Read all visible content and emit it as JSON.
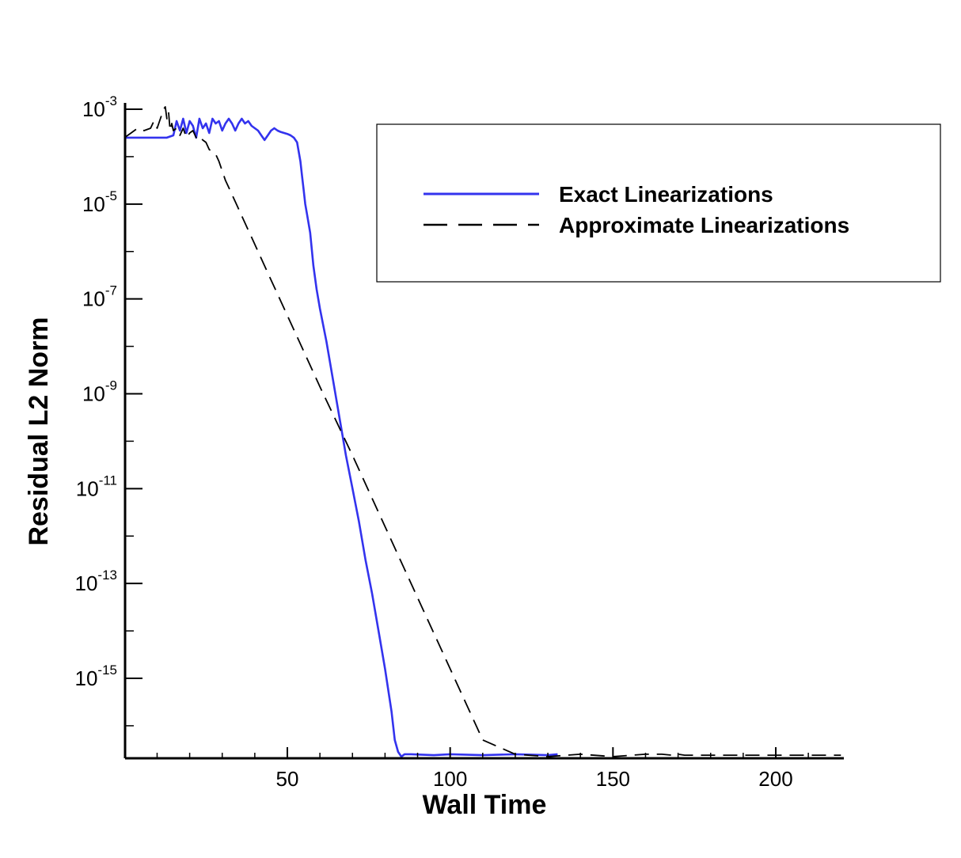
{
  "chart_data": {
    "type": "line",
    "xlabel": "Wall Time",
    "ylabel": "Residual L2 Norm",
    "xlim": [
      0,
      220
    ],
    "ylim_log10": [
      -16.7,
      -2.95
    ],
    "yscale": "log",
    "grid": false,
    "legend_placement": "top-right",
    "x_ticks": [
      {
        "value": 50,
        "label": "50"
      },
      {
        "value": 100,
        "label": "100"
      },
      {
        "value": 150,
        "label": "150"
      },
      {
        "value": 200,
        "label": "200"
      }
    ],
    "y_ticks": [
      {
        "value": -3,
        "base": "10",
        "exp": "-3"
      },
      {
        "value": -5,
        "base": "10",
        "exp": "-5"
      },
      {
        "value": -7,
        "base": "10",
        "exp": "-7"
      },
      {
        "value": -9,
        "base": "10",
        "exp": "-9"
      },
      {
        "value": -11,
        "base": "10",
        "exp": "-11"
      },
      {
        "value": -13,
        "base": "10",
        "exp": "-13"
      },
      {
        "value": -15,
        "base": "10",
        "exp": "-15"
      }
    ],
    "series": [
      {
        "name": "Exact Linearizations",
        "color": "#3333ee",
        "style": "solid",
        "x": [
          0,
          9,
          13,
          15,
          16,
          17,
          18,
          19,
          20,
          21,
          22,
          23,
          24,
          25,
          26,
          27,
          28,
          29,
          30,
          31,
          32,
          33,
          34,
          35,
          36,
          37,
          38,
          39,
          40,
          41,
          42,
          43,
          44,
          45,
          46,
          47,
          48,
          49,
          50,
          51,
          52,
          53,
          53.5,
          54,
          54.5,
          55,
          55.5,
          56,
          57,
          58,
          59,
          60,
          62,
          64,
          66,
          68,
          70,
          72,
          74,
          76,
          78,
          80,
          82,
          83,
          84,
          85,
          86,
          88,
          95,
          100,
          110,
          120,
          130,
          133
        ],
        "y": [
          -3.6,
          -3.6,
          -3.6,
          -3.55,
          -3.25,
          -3.45,
          -3.2,
          -3.5,
          -3.25,
          -3.35,
          -3.6,
          -3.2,
          -3.4,
          -3.3,
          -3.5,
          -3.2,
          -3.3,
          -3.25,
          -3.45,
          -3.3,
          -3.2,
          -3.3,
          -3.45,
          -3.3,
          -3.2,
          -3.3,
          -3.25,
          -3.35,
          -3.4,
          -3.45,
          -3.55,
          -3.65,
          -3.55,
          -3.45,
          -3.4,
          -3.45,
          -3.48,
          -3.5,
          -3.52,
          -3.55,
          -3.6,
          -3.7,
          -3.9,
          -4.1,
          -4.4,
          -4.7,
          -5.0,
          -5.2,
          -5.6,
          -6.3,
          -6.8,
          -7.2,
          -7.9,
          -8.7,
          -9.5,
          -10.3,
          -11.0,
          -11.7,
          -12.5,
          -13.2,
          -14.0,
          -14.8,
          -15.7,
          -16.3,
          -16.55,
          -16.65,
          -16.6,
          -16.6,
          -16.62,
          -16.6,
          -16.62,
          -16.6,
          -16.62,
          -16.6
        ]
      },
      {
        "name": "Approximate Linearizations",
        "color": "#000000",
        "style": "dashed",
        "x": [
          0,
          2,
          4,
          6,
          8,
          9,
          10,
          11,
          12,
          12.5,
          13,
          13.5,
          14,
          14.5,
          15,
          16,
          17,
          18,
          19,
          20,
          21,
          22,
          23,
          24,
          25,
          26,
          27,
          28,
          29,
          30,
          31,
          32,
          33,
          34,
          35,
          36,
          37,
          38,
          39,
          40,
          45,
          50,
          55,
          60,
          70,
          80,
          90,
          100,
          110,
          120,
          130,
          140,
          150,
          160,
          165,
          168,
          170,
          172,
          175,
          180,
          190,
          200,
          210,
          220
        ],
        "y": [
          -3.6,
          -3.5,
          -3.4,
          -3.45,
          -3.4,
          -3.25,
          -3.4,
          -3.2,
          -3.0,
          -2.95,
          -3.2,
          -3.05,
          -3.45,
          -3.3,
          -3.45,
          -3.4,
          -3.55,
          -3.4,
          -3.6,
          -3.5,
          -3.45,
          -3.6,
          -3.55,
          -3.65,
          -3.7,
          -3.85,
          -3.9,
          -3.95,
          -4.1,
          -4.3,
          -4.5,
          -4.65,
          -4.8,
          -4.95,
          -5.1,
          -5.25,
          -5.4,
          -5.55,
          -5.7,
          -5.85,
          -6.6,
          -7.35,
          -8.1,
          -8.85,
          -10.3,
          -11.8,
          -13.3,
          -14.8,
          -16.3,
          -16.6,
          -16.65,
          -16.6,
          -16.65,
          -16.6,
          -16.6,
          -16.62,
          -16.6,
          -16.62,
          -16.62,
          -16.62,
          -16.62,
          -16.62,
          -16.62,
          -16.62
        ]
      }
    ]
  }
}
